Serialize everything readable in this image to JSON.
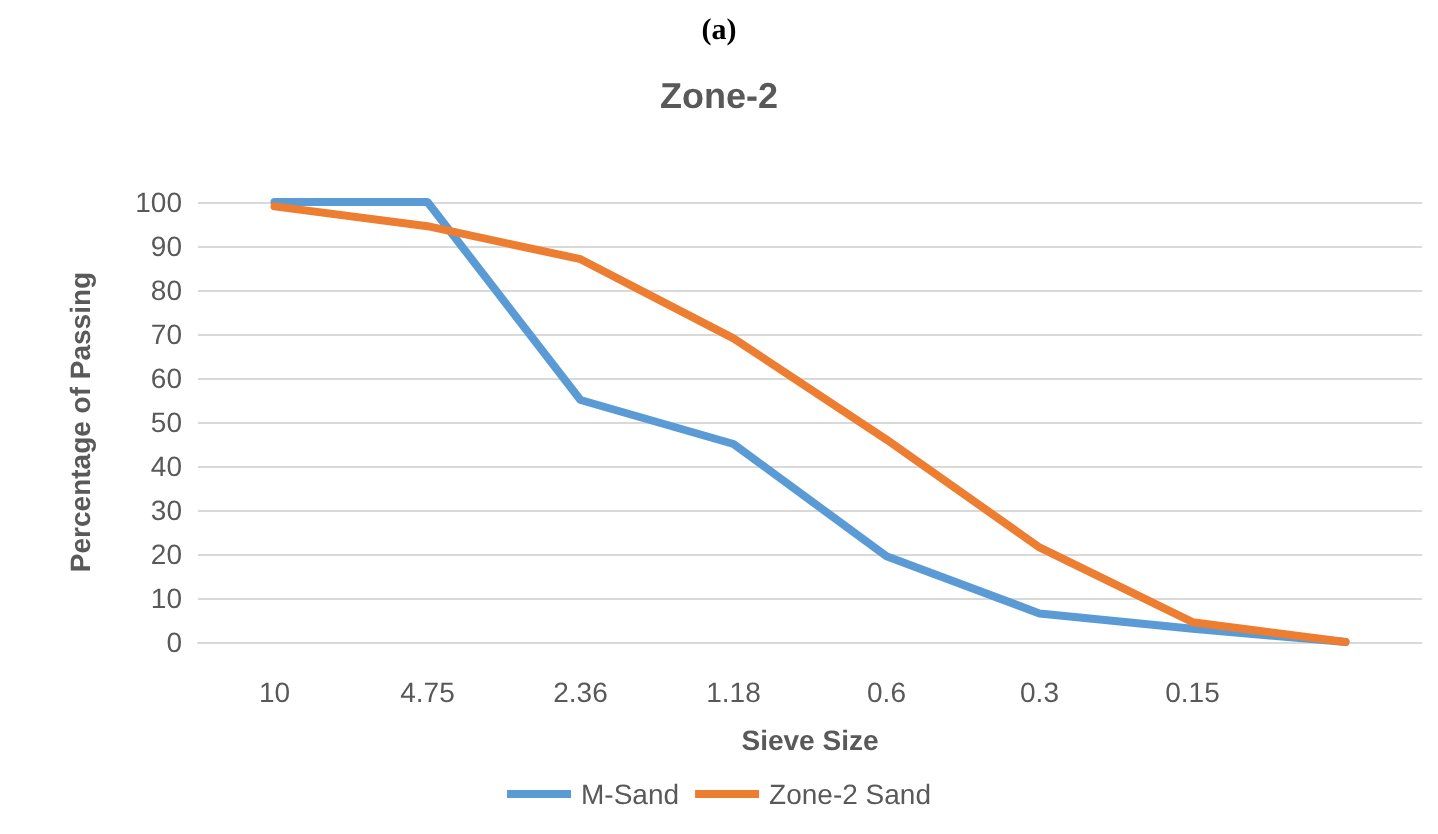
{
  "chart_data": {
    "type": "line",
    "title": "Zone-2",
    "xlabel": "Sieve Size",
    "ylabel": "Percentage of Passing",
    "annotations": [
      "(a)"
    ],
    "categories": [
      "10",
      "4.75",
      "2.36",
      "1.18",
      "0.6",
      "0.3",
      "0.15",
      null
    ],
    "series": [
      {
        "name": "M-Sand",
        "color": "#5b9bd5",
        "values": [
          100,
          100,
          55,
          45,
          19.5,
          6.5,
          3,
          0
        ]
      },
      {
        "name": "Zone-2 Sand",
        "color": "#ed7d31",
        "values": [
          99,
          94.5,
          87,
          69,
          46,
          21.5,
          4.5,
          0
        ]
      }
    ],
    "ylim": [
      0,
      100
    ],
    "yticks": [
      0,
      10,
      20,
      30,
      40,
      50,
      60,
      70,
      80,
      90,
      100
    ],
    "grid": "y",
    "legend": "bottom",
    "marker": "none",
    "line_style": "solid"
  }
}
